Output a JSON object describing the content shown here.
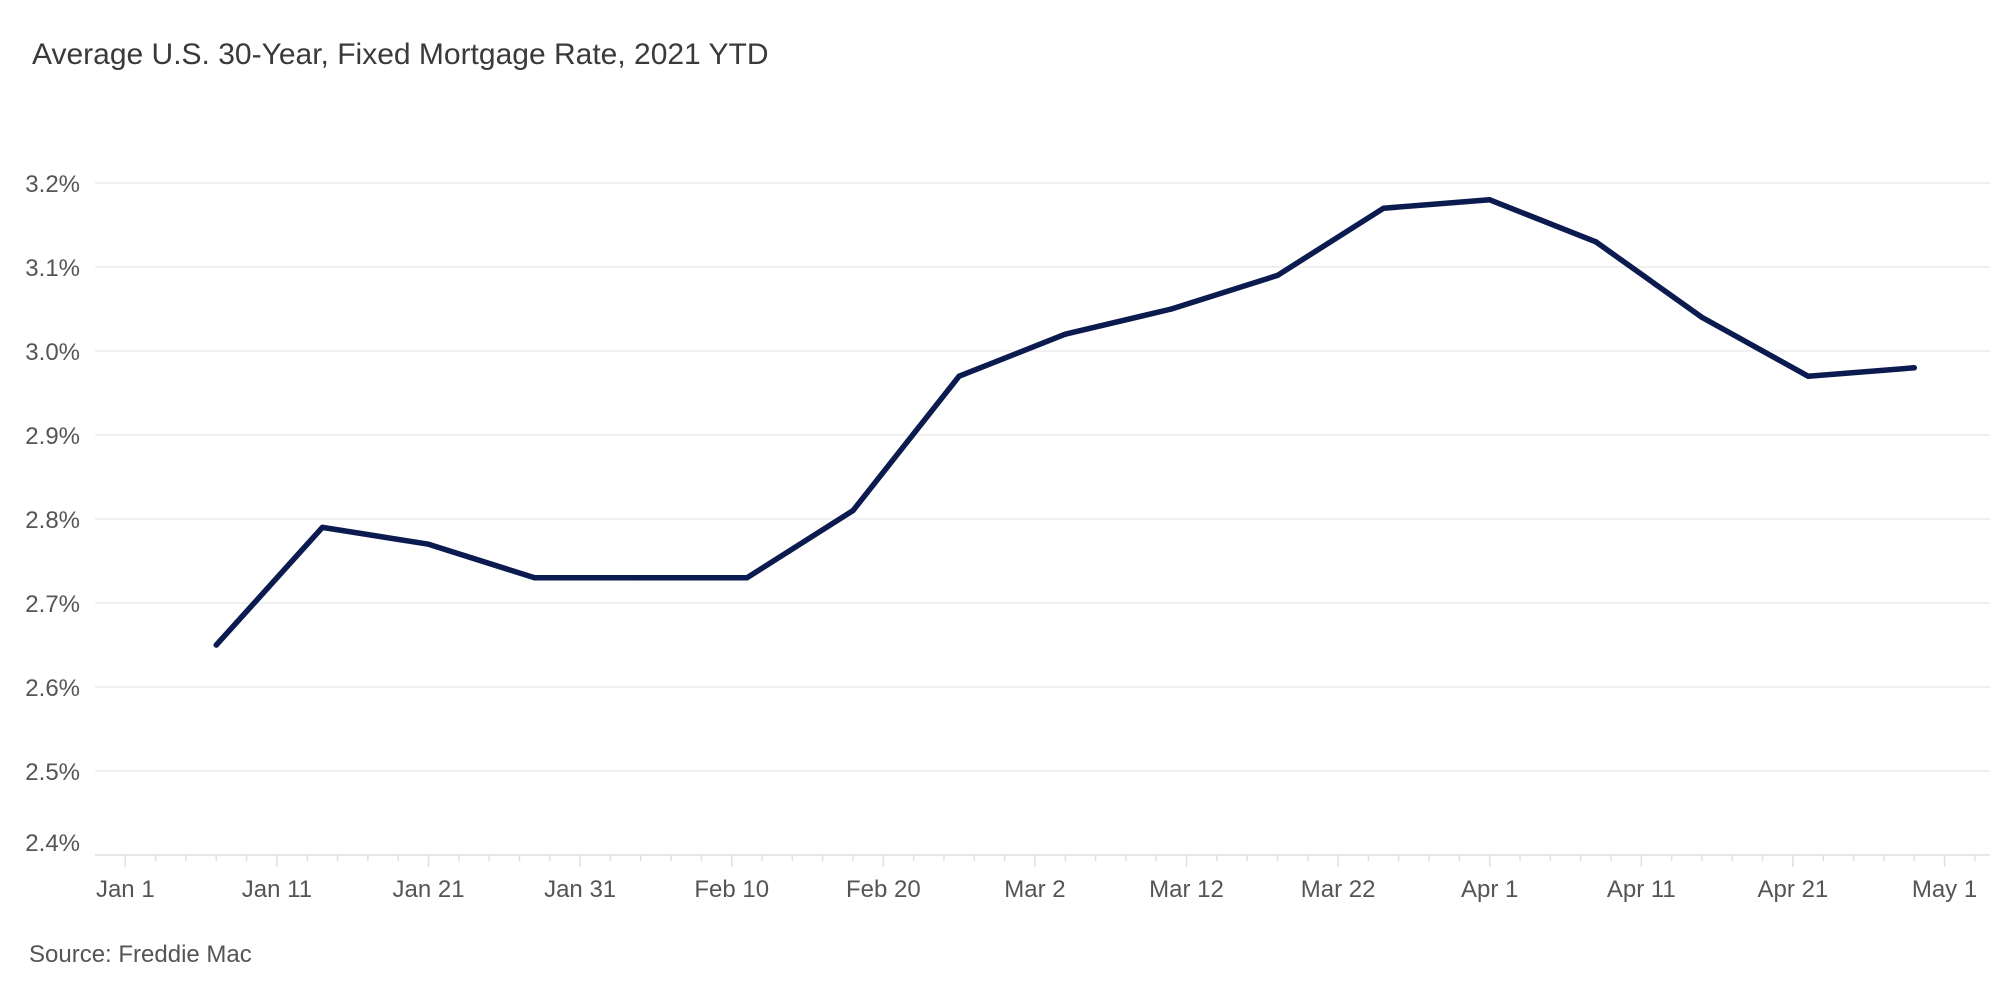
{
  "page": {
    "source": "Source: Freddie Mac"
  },
  "chart_data": {
    "type": "line",
    "title": "Average U.S. 30-Year, Fixed Mortgage Rate, 2021 YTD",
    "xlabel": "",
    "ylabel": "",
    "x_tick_labels": [
      "Jan 1",
      "Jan 11",
      "Jan 21",
      "Jan 31",
      "Feb 10",
      "Feb 20",
      "Mar 2",
      "Mar 12",
      "Mar 22",
      "Apr 1",
      "Apr 11",
      "Apr 21",
      "May 1"
    ],
    "y_tick_labels": [
      "3.2%",
      "3.1%",
      "3.0%",
      "2.9%",
      "2.8%",
      "2.7%",
      "2.6%",
      "2.5%",
      "2.4%"
    ],
    "y_ticks": [
      3.2,
      3.1,
      3.0,
      2.9,
      2.8,
      2.7,
      2.6,
      2.5,
      2.4
    ],
    "ylim": [
      2.4,
      3.2
    ],
    "xlim": [
      "2020-12-30",
      "2021-05-04"
    ],
    "grid": true,
    "colors": {
      "line": "#0b1a4f",
      "grid": "#ebebeb",
      "axis": "#e0e0e0"
    },
    "series": [
      {
        "x": [
          "2021-01-07",
          "2021-01-14",
          "2021-01-21",
          "2021-01-28",
          "2021-02-04",
          "2021-02-11",
          "2021-02-18",
          "2021-02-25",
          "2021-03-04",
          "2021-03-11",
          "2021-03-18",
          "2021-03-25",
          "2021-04-01",
          "2021-04-08",
          "2021-04-15",
          "2021-04-22",
          "2021-04-29"
        ],
        "values": [
          2.65,
          2.79,
          2.77,
          2.73,
          2.73,
          2.73,
          2.81,
          2.97,
          3.02,
          3.05,
          3.09,
          3.17,
          3.18,
          3.13,
          3.04,
          2.97,
          2.98
        ]
      }
    ]
  }
}
